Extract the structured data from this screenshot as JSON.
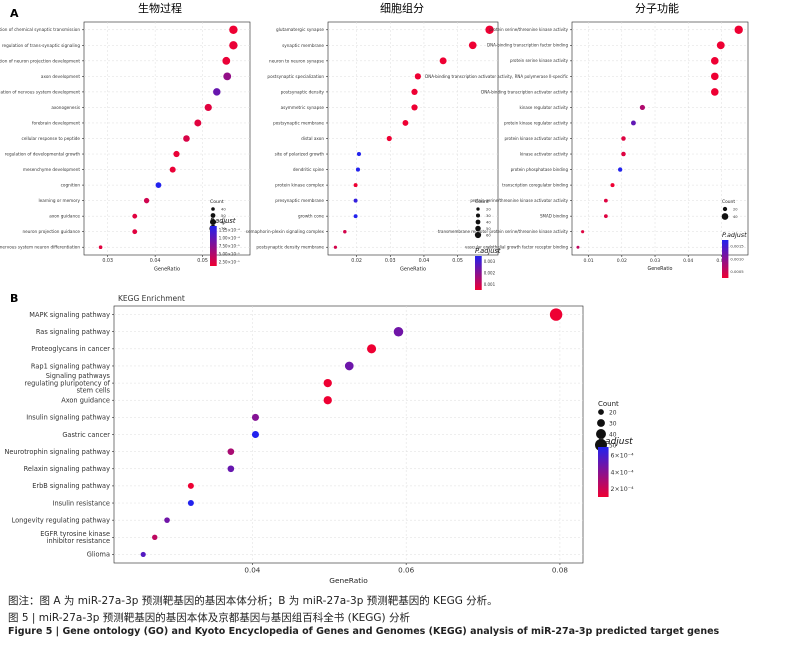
{
  "panel_a_label": "A",
  "panel_b_label": "B",
  "chart_data": [
    {
      "type": "scatter",
      "title": "生物过程",
      "xlabel": "GeneRatio",
      "ylabel": "",
      "xlim": [
        0.025,
        0.06
      ],
      "xticks": [
        0.03,
        0.04,
        0.05
      ],
      "tick_labels": [
        "0.03",
        "0.04",
        "0.05"
      ],
      "categories": [
        "modulation of chemical synaptic transmission",
        "regulation of trans-synaptic signaling",
        "regulation of neuron projection development",
        "axon development",
        "regulation of nervous system development",
        "axonogenesis",
        "forebrain development",
        "cellular response to peptide",
        "regulation of developmental growth",
        "mesenchyme development",
        "cognition",
        "learning or memory",
        "axon guidance",
        "neuron projection guidance",
        "central nervous system neuron differentiation"
      ],
      "points": [
        {
          "x": 0.0565,
          "padj": 1.5e-05,
          "count": 80
        },
        {
          "x": 0.0565,
          "padj": 2e-05,
          "count": 80
        },
        {
          "x": 0.055,
          "padj": 2e-05,
          "count": 75
        },
        {
          "x": 0.0552,
          "padj": 0.00012,
          "count": 75
        },
        {
          "x": 0.053,
          "padj": 0.00017,
          "count": 72
        },
        {
          "x": 0.0512,
          "padj": 3e-05,
          "count": 70
        },
        {
          "x": 0.049,
          "padj": 3e-05,
          "count": 68
        },
        {
          "x": 0.0466,
          "padj": 4e-05,
          "count": 65
        },
        {
          "x": 0.0445,
          "padj": 2e-05,
          "count": 62
        },
        {
          "x": 0.0437,
          "padj": 2e-05,
          "count": 60
        },
        {
          "x": 0.0407,
          "padj": 0.00025,
          "count": 58
        },
        {
          "x": 0.0382,
          "padj": 5e-05,
          "count": 55
        },
        {
          "x": 0.0357,
          "padj": 3e-05,
          "count": 50
        },
        {
          "x": 0.0357,
          "padj": 3e-05,
          "count": 50
        },
        {
          "x": 0.0285,
          "padj": 3e-05,
          "count": 40
        }
      ],
      "legend": {
        "size_title": "Count",
        "size_values": [
          40,
          50,
          60,
          70
        ],
        "color_title": "P.adjust",
        "color_ticks": [
          "1.25×10⁻⁴",
          "1.00×10⁻⁴",
          "7.50×10⁻⁵",
          "5.00×10⁻⁵",
          "2.50×10⁻⁵"
        ],
        "color_high": "#0000ee",
        "color_low": "#ee0022"
      }
    },
    {
      "type": "scatter",
      "title": "细胞组分",
      "xlabel": "GeneRatio",
      "ylabel": "",
      "xlim": [
        0.0115,
        0.062
      ],
      "xticks": [
        0.02,
        0.03,
        0.04,
        0.05
      ],
      "tick_labels": [
        "0.02",
        "0.03",
        "0.04",
        "0.05"
      ],
      "categories": [
        "glutamatergic synapse",
        "synaptic membrane",
        "neuron to neuron synapse",
        "postsynaptic specialization",
        "postsynaptic density",
        "asymmetric synapse",
        "postsynaptic membrane",
        "distal axon",
        "site of polarized growth",
        "dendritic spine",
        "protein kinase complex",
        "presynaptic membrane",
        "growth cone",
        "semaphorin-plexin signaling complex",
        "postsynaptic density membrane"
      ],
      "points": [
        {
          "x": 0.0595,
          "padj": 0.0005,
          "count": 90
        },
        {
          "x": 0.0545,
          "padj": 0.0005,
          "count": 80
        },
        {
          "x": 0.0457,
          "padj": 0.0005,
          "count": 70
        },
        {
          "x": 0.0382,
          "padj": 0.0005,
          "count": 60
        },
        {
          "x": 0.0372,
          "padj": 0.0005,
          "count": 60
        },
        {
          "x": 0.0372,
          "padj": 0.0005,
          "count": 60
        },
        {
          "x": 0.0345,
          "padj": 0.0005,
          "count": 55
        },
        {
          "x": 0.0297,
          "padj": 0.0005,
          "count": 45
        },
        {
          "x": 0.0207,
          "padj": 0.0028,
          "count": 30
        },
        {
          "x": 0.0204,
          "padj": 0.0028,
          "count": 30
        },
        {
          "x": 0.0197,
          "padj": 0.0005,
          "count": 28
        },
        {
          "x": 0.0197,
          "padj": 0.0026,
          "count": 28
        },
        {
          "x": 0.0197,
          "padj": 0.0028,
          "count": 28
        },
        {
          "x": 0.0165,
          "padj": 0.0008,
          "count": 22
        },
        {
          "x": 0.0137,
          "padj": 0.0008,
          "count": 18
        }
      ],
      "legend": {
        "size_title": "Count",
        "size_values": [
          20,
          30,
          40,
          50,
          60
        ],
        "color_title": "P.adjust",
        "color_ticks": [
          "0.003",
          "0.002",
          "0.001"
        ],
        "color_high": "#0000ee",
        "color_low": "#ee0022"
      }
    },
    {
      "type": "scatter",
      "title": "分子功能",
      "xlabel": "GeneRatio",
      "ylabel": "",
      "xlim": [
        0.005,
        0.058
      ],
      "xticks": [
        0.01,
        0.02,
        0.03,
        0.04,
        0.05
      ],
      "tick_labels": [
        "0.01",
        "0.02",
        "0.03",
        "0.04",
        "0.05"
      ],
      "categories": [
        "protein serine/threonine kinase activity",
        "DNA-binding transcription factor binding",
        "protein serine kinase activity",
        "DNA-binding transcription activator activity, RNA polymerase II-specific",
        "DNA-binding transcription activator activity",
        "kinase regulator activity",
        "protein kinase regulator activity",
        "protein kinase activator activity",
        "kinase activator activity",
        "protein phosphatase binding",
        "transcription coregulator binding",
        "protein serine/threonine kinase activator activity",
        "SMAD binding",
        "transmembrane receptor protein serine/threonine kinase activity",
        "vascular endothelial growth factor receptor binding"
      ],
      "points": [
        {
          "x": 0.0552,
          "padj": 0.0005,
          "count": 55
        },
        {
          "x": 0.0498,
          "padj": 0.0005,
          "count": 50
        },
        {
          "x": 0.048,
          "padj": 0.0005,
          "count": 48
        },
        {
          "x": 0.048,
          "padj": 0.0005,
          "count": 48
        },
        {
          "x": 0.048,
          "padj": 0.0005,
          "count": 48
        },
        {
          "x": 0.0262,
          "padj": 0.0009,
          "count": 28
        },
        {
          "x": 0.0235,
          "padj": 0.0014,
          "count": 25
        },
        {
          "x": 0.0205,
          "padj": 0.0006,
          "count": 22
        },
        {
          "x": 0.0205,
          "padj": 0.0006,
          "count": 22
        },
        {
          "x": 0.0195,
          "padj": 0.0018,
          "count": 20
        },
        {
          "x": 0.0172,
          "padj": 0.0005,
          "count": 18
        },
        {
          "x": 0.0152,
          "padj": 0.0006,
          "count": 16
        },
        {
          "x": 0.0152,
          "padj": 0.0006,
          "count": 16
        },
        {
          "x": 0.0082,
          "padj": 0.0006,
          "count": 10
        },
        {
          "x": 0.0068,
          "padj": 0.0008,
          "count": 9
        }
      ],
      "legend": {
        "size_title": "Count",
        "size_values": [
          20,
          40
        ],
        "color_title": "P.adjust",
        "color_ticks": [
          "0.0015",
          "0.0010",
          "0.0005"
        ],
        "color_high": "#0000ee",
        "color_low": "#ee0022"
      }
    },
    {
      "type": "scatter",
      "title": "KEGG Enrichment",
      "xlabel": "GeneRatio",
      "ylabel": "",
      "xlim": [
        0.022,
        0.083
      ],
      "xticks": [
        0.04,
        0.06,
        0.08
      ],
      "tick_labels": [
        "0.04",
        "0.06",
        "0.08"
      ],
      "categories": [
        "MAPK signaling pathway",
        "Ras signaling pathway",
        "Proteoglycans in cancer",
        "Rap1 signaling pathway",
        "Signaling pathways\nregulating pluripotency of\nstem cells",
        "Axon guidance",
        "Insulin signaling pathway",
        "Gastric cancer",
        "Neurotrophin signaling pathway",
        "Relaxin signaling pathway",
        "ErbB signaling pathway",
        "Insulin resistance",
        "Longevity regulating pathway",
        "EGFR tyrosine kinase\ninhibitor resistance",
        "Glioma"
      ],
      "points": [
        {
          "x": 0.0795,
          "padj": 1e-05,
          "count": 52
        },
        {
          "x": 0.059,
          "padj": 0.00045,
          "count": 38
        },
        {
          "x": 0.0555,
          "padj": 1e-05,
          "count": 36
        },
        {
          "x": 0.0526,
          "padj": 0.00046,
          "count": 34
        },
        {
          "x": 0.0498,
          "padj": 1e-05,
          "count": 32
        },
        {
          "x": 0.0498,
          "padj": 1e-05,
          "count": 32
        },
        {
          "x": 0.0404,
          "padj": 0.00038,
          "count": 26
        },
        {
          "x": 0.0404,
          "padj": 0.00072,
          "count": 26
        },
        {
          "x": 0.0372,
          "padj": 0.00025,
          "count": 24
        },
        {
          "x": 0.0372,
          "padj": 0.00048,
          "count": 24
        },
        {
          "x": 0.032,
          "padj": 1e-05,
          "count": 21
        },
        {
          "x": 0.032,
          "padj": 0.00072,
          "count": 21
        },
        {
          "x": 0.0289,
          "padj": 0.00045,
          "count": 19
        },
        {
          "x": 0.0273,
          "padj": 0.00018,
          "count": 18
        },
        {
          "x": 0.0258,
          "padj": 0.00055,
          "count": 17
        }
      ],
      "legend": {
        "size_title": "Count",
        "size_values": [
          20,
          30,
          40,
          50
        ],
        "color_title": "P.adjust",
        "color_ticks": [
          "6×10⁻⁴",
          "4×10⁻⁴",
          "2×10⁻⁴"
        ],
        "color_high": "#0000ee",
        "color_low": "#ee0022"
      }
    }
  ],
  "caption": {
    "note": "图注：图 A 为 miR-27a-3p 预测靶基因的基因本体分析；B 为 miR-27a-3p 预测靶基因的 KEGG 分析。",
    "title_cn": "图 5  |  miR-27a-3p 预测靶基因的基因本体及京都基因与基因组百科全书 (KEGG) 分析",
    "title_en": "Figure 5  |  Gene ontology (GO) and Kyoto Encyclopedia of Genes and Genomes (KEGG) analysis of miR-27a-3p predicted target genes"
  }
}
